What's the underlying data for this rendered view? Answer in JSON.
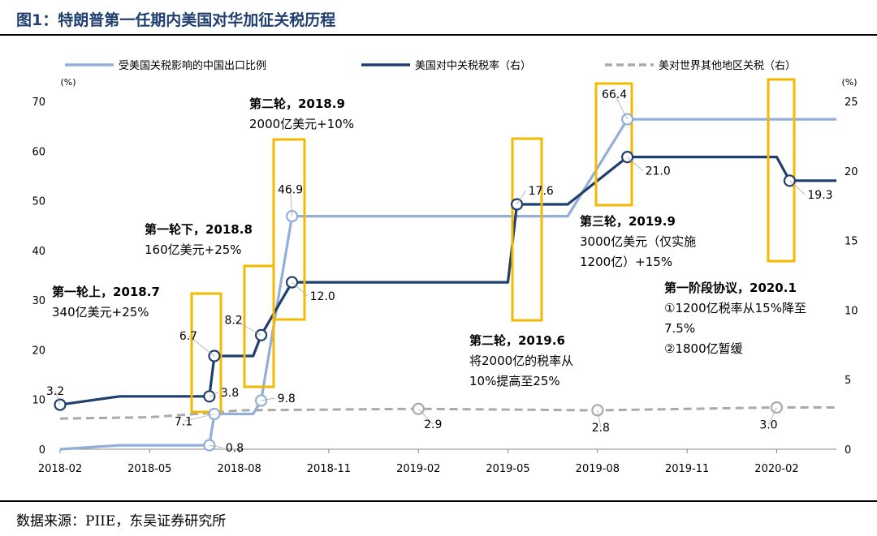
{
  "figure_title": "图1：特朗普第一任期内美国对华加征关税历程",
  "source": "数据来源：PIIE，东吴证券研究所",
  "colors": {
    "light_series": "#93aed8",
    "dark_series": "#1f3f6e",
    "gray_series": "#aaaaaa",
    "highlight_box": "#f5b800"
  },
  "chart_data": {
    "type": "line",
    "x_axis": {
      "type": "date",
      "range": [
        "2018-02",
        "2020-04"
      ],
      "ticks": [
        "2018-02",
        "2018-05",
        "2018-08",
        "2018-11",
        "2019-02",
        "2019-05",
        "2019-08",
        "2019-11",
        "2020-02"
      ]
    },
    "y_left": {
      "unit": "(%)",
      "range": [
        0,
        70
      ],
      "ticks": [
        0,
        10,
        20,
        30,
        40,
        50,
        60,
        70
      ]
    },
    "y_right": {
      "unit": "(%)",
      "range": [
        0,
        25
      ],
      "ticks": [
        0,
        5,
        10,
        15,
        20,
        25
      ]
    },
    "legend_position": "top",
    "series": [
      {
        "name": "受美国关税影响的中国出口比例",
        "axis": "left",
        "style": "solid-light",
        "points": [
          [
            "2018-02",
            0
          ],
          [
            "2018-04",
            0.8
          ],
          [
            "2018-07",
            0.8
          ],
          [
            "2018-07-06",
            7.1
          ],
          [
            "2018-08-15",
            7.1
          ],
          [
            "2018-08-23",
            9.8
          ],
          [
            "2018-09-24",
            46.9
          ],
          [
            "2019-05-10",
            46.9
          ],
          [
            "2019-07",
            46.9
          ],
          [
            "2019-09-01",
            66.4
          ],
          [
            "2020-04",
            66.4
          ]
        ]
      },
      {
        "name": "美国对中关税税率（右）",
        "axis": "right",
        "style": "solid-dark",
        "points": [
          [
            "2018-02",
            3.2
          ],
          [
            "2018-04",
            3.8
          ],
          [
            "2018-07",
            3.8
          ],
          [
            "2018-07-06",
            6.7
          ],
          [
            "2018-08-15",
            6.7
          ],
          [
            "2018-08-23",
            8.2
          ],
          [
            "2018-09-24",
            12.0
          ],
          [
            "2019-05-01",
            12.0
          ],
          [
            "2019-05-10",
            17.6
          ],
          [
            "2019-07",
            17.6
          ],
          [
            "2019-09-01",
            21.0
          ],
          [
            "2020-01-31",
            21.0
          ],
          [
            "2020-02-14",
            19.3
          ],
          [
            "2020-04",
            19.3
          ]
        ]
      },
      {
        "name": "美对世界其他地区关税（右）",
        "axis": "right",
        "style": "dashed-gray",
        "points": [
          [
            "2018-02",
            2.2
          ],
          [
            "2018-05",
            2.3
          ],
          [
            "2018-07",
            2.6
          ],
          [
            "2018-08",
            2.8
          ],
          [
            "2019-02",
            2.9
          ],
          [
            "2019-08",
            2.8
          ],
          [
            "2020-02",
            3.0
          ],
          [
            "2020-04",
            3.0
          ]
        ]
      }
    ],
    "data_labels": [
      {
        "series": 1,
        "x": "2018-02",
        "text": "3.2"
      },
      {
        "series": 1,
        "x": "2018-07",
        "text": "3.8"
      },
      {
        "series": 1,
        "x": "2018-07-06",
        "text": "6.7"
      },
      {
        "series": 1,
        "x": "2018-08-23",
        "text": "8.2"
      },
      {
        "series": 1,
        "x": "2018-09-24",
        "text": "12.0"
      },
      {
        "series": 1,
        "x": "2019-05-10",
        "text": "17.6"
      },
      {
        "series": 1,
        "x": "2019-09-01",
        "text": "21.0"
      },
      {
        "series": 1,
        "x": "2020-02-14",
        "text": "19.3"
      },
      {
        "series": 0,
        "x": "2018-07",
        "text": "0.8"
      },
      {
        "series": 0,
        "x": "2018-07-06",
        "text": "7.1"
      },
      {
        "series": 0,
        "x": "2018-08-23",
        "text": "9.8"
      },
      {
        "series": 0,
        "x": "2018-09-24",
        "text": "46.9"
      },
      {
        "series": 0,
        "x": "2019-09-01",
        "text": "66.4"
      },
      {
        "series": 2,
        "x": "2019-02",
        "text": "2.9"
      },
      {
        "series": 2,
        "x": "2019-08",
        "text": "2.8"
      },
      {
        "series": 2,
        "x": "2020-02",
        "text": "3.0"
      }
    ],
    "annotations": [
      {
        "lines": [
          "第一轮上，2018.7",
          "340亿美元+25%"
        ]
      },
      {
        "lines": [
          "第一轮下，2018.8",
          "160亿美元+25%"
        ]
      },
      {
        "lines": [
          "第二轮，2018.9",
          "2000亿美元+10%"
        ]
      },
      {
        "lines": [
          "第二轮，2019.6",
          "将2000亿的税率从",
          "10%提高至25%"
        ]
      },
      {
        "lines": [
          "第三轮，2019.9",
          "3000亿美元（仅实施",
          "1200亿）+15%"
        ]
      },
      {
        "lines": [
          "第一阶段协议，2020.1",
          "①1200亿税率从15%降至",
          "7.5%",
          "②1800亿暂缓"
        ]
      }
    ],
    "highlight_periods": [
      "2018-07",
      "2018-08",
      "2018-09",
      "2019-06",
      "2019-09",
      "2020-02"
    ]
  }
}
